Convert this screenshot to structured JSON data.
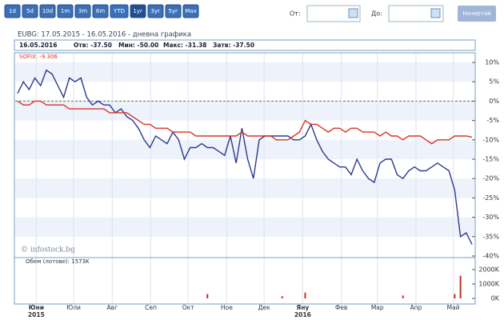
{
  "toolbar": {
    "ranges": [
      "1d",
      "5d",
      "10d",
      "1m",
      "3m",
      "6m",
      "YTD",
      "1уг",
      "3уг",
      "5уг",
      "Max"
    ],
    "active": 7,
    "from_label": "От:",
    "to_label": "До:",
    "button": "Начертай"
  },
  "chart_data": {
    "type": "line",
    "title": "EUBG: 17.05.2015 - 16.05.2016 - дневна графика",
    "info": [
      "16.05.2016",
      "Отв: -37.50",
      "Мин: -50.00",
      "Макс: -31.38",
      "Затв: -37.50"
    ],
    "legend": "SOFIX: -9.306",
    "watermark": "© infostock.bg",
    "months": [
      "Юни",
      "Юли",
      "Авг",
      "Сеп",
      "Окт",
      "Ное",
      "Дек",
      "Яну",
      "Фев",
      "Мар",
      "Апр",
      "Май"
    ],
    "years": [
      "2015",
      "2016"
    ],
    "ylim": [
      -40,
      10
    ],
    "yticks": [
      {
        "value": 10,
        "label": "10%"
      },
      {
        "value": 5,
        "label": "5%"
      },
      {
        "value": 0,
        "label": "0%"
      },
      {
        "value": -5,
        "label": "-5%"
      },
      {
        "value": -10,
        "label": "-10%"
      },
      {
        "value": -15,
        "label": "-15%"
      },
      {
        "value": -20,
        "label": "-20%"
      },
      {
        "value": -25,
        "label": "-25%"
      },
      {
        "value": -30,
        "label": "-30%"
      },
      {
        "value": -35,
        "label": "-35%"
      },
      {
        "value": -40,
        "label": "-40%"
      }
    ],
    "series": [
      {
        "name": "EUBG",
        "color": "#2b3a8c",
        "values": [
          2,
          5,
          3,
          6,
          4,
          8,
          7,
          4,
          1,
          6,
          5,
          6,
          1,
          -1,
          0,
          -1,
          -1,
          -3,
          -2,
          -4,
          -5,
          -7,
          -10,
          -12,
          -9,
          -10,
          -11,
          -8,
          -10,
          -15,
          -12,
          -12,
          -11,
          -12,
          -12,
          -13,
          -14,
          -9,
          -16,
          -7,
          -15,
          -20,
          -10,
          -9,
          -9,
          -9,
          -9,
          -9,
          -10,
          -10,
          -9,
          -6,
          -10,
          -13,
          -15,
          -16,
          -17,
          -17,
          -19,
          -15,
          -18,
          -20,
          -21,
          -16,
          -15,
          -15,
          -19,
          -20,
          -18,
          -17,
          -18,
          -18,
          -17,
          -16,
          -17,
          -18,
          -23,
          -35,
          -34,
          -37
        ]
      },
      {
        "name": "SOFIX",
        "color": "#d9342b",
        "values": [
          0,
          -1,
          -1,
          0,
          0,
          -1,
          -1,
          -1,
          -1,
          -2,
          -2,
          -2,
          -2,
          -2,
          -2,
          -2,
          -3,
          -3,
          -3,
          -3,
          -4,
          -5,
          -6,
          -6,
          -7,
          -7,
          -7,
          -8,
          -8,
          -8,
          -8,
          -9,
          -9,
          -9,
          -9,
          -9,
          -9,
          -9,
          -9,
          -8,
          -9,
          -9,
          -9,
          -9,
          -9,
          -10,
          -10,
          -10,
          -9,
          -8,
          -5,
          -6,
          -6,
          -7,
          -8,
          -7,
          -7,
          -8,
          -7,
          -7,
          -8,
          -8,
          -8,
          -9,
          -8,
          -9,
          -9,
          -10,
          -9,
          -9,
          -9,
          -10,
          -11,
          -10,
          -10,
          -10,
          -9,
          -9,
          -9,
          -9.306
        ]
      }
    ],
    "volume": {
      "label": "Обем (лотове): 1573K",
      "color": "#c0302a",
      "ylim": [
        0,
        2000
      ],
      "yticks": [
        {
          "value": 0,
          "label": "0K"
        },
        {
          "value": 1000,
          "label": "1000K"
        },
        {
          "value": 2000,
          "label": "2000K"
        }
      ],
      "values": [
        0,
        0,
        0,
        0,
        0,
        0,
        0,
        0,
        0,
        0,
        0,
        0,
        0,
        0,
        0,
        0,
        0,
        0,
        0,
        0,
        0,
        0,
        0,
        0,
        0,
        0,
        0,
        0,
        0,
        0,
        0,
        0,
        0,
        300,
        0,
        0,
        0,
        0,
        0,
        0,
        0,
        0,
        0,
        0,
        0,
        0,
        150,
        0,
        0,
        0,
        400,
        0,
        0,
        0,
        0,
        0,
        0,
        0,
        0,
        0,
        0,
        0,
        0,
        0,
        0,
        0,
        0,
        200,
        0,
        0,
        0,
        0,
        0,
        0,
        0,
        0,
        300,
        1573,
        0,
        0
      ]
    }
  }
}
